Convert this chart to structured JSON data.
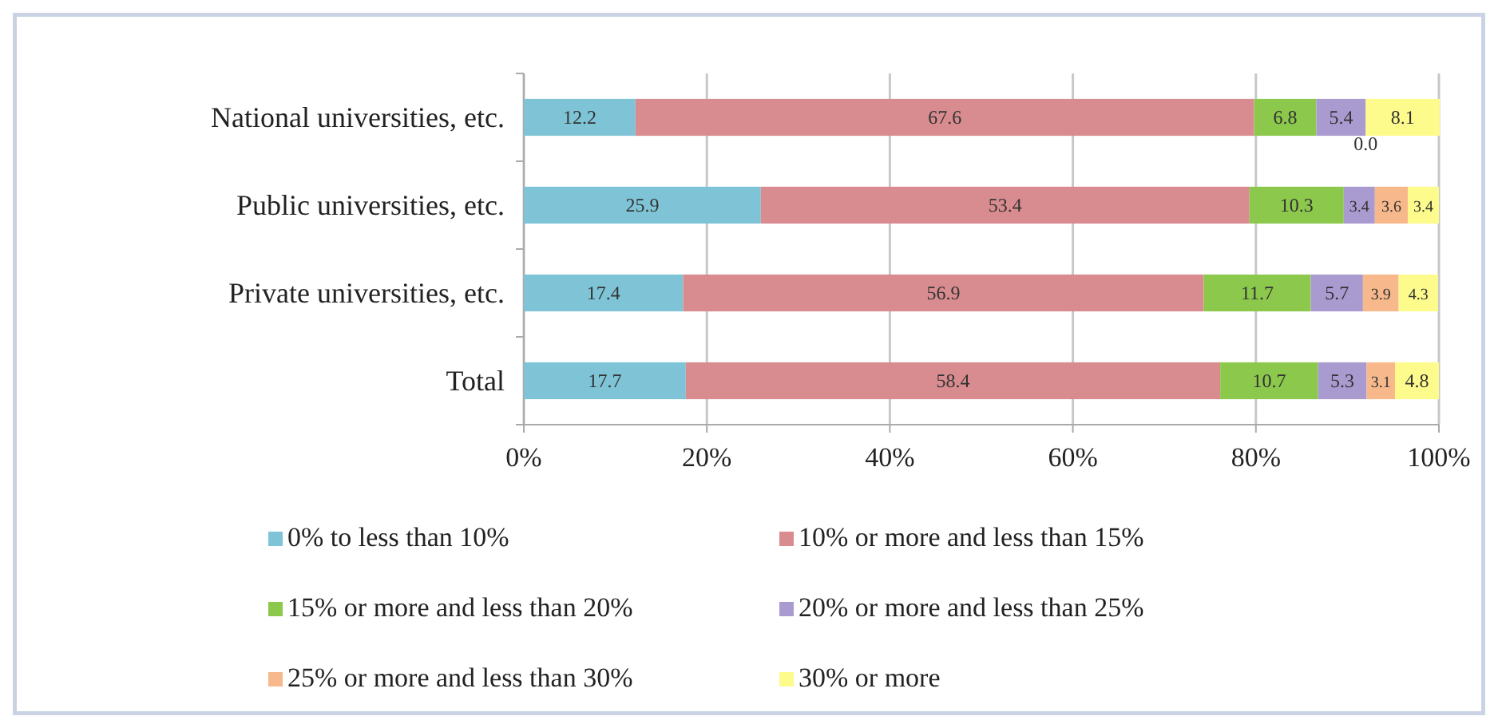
{
  "chart_data": {
    "type": "bar",
    "orientation": "horizontal",
    "stacked": true,
    "grid": "x",
    "legend": "bottom",
    "categories": [
      "National universities, etc.",
      "Public universities, etc.",
      "Private universities, etc.",
      "Total"
    ],
    "xlim": [
      0,
      100
    ],
    "xticks": [
      {
        "value": 0,
        "label": "0%"
      },
      {
        "value": 20,
        "label": "20%"
      },
      {
        "value": 40,
        "label": "40%"
      },
      {
        "value": 60,
        "label": "60%"
      },
      {
        "value": 80,
        "label": "80%"
      },
      {
        "value": 100,
        "label": "100%"
      }
    ],
    "series": [
      {
        "name": "0% to less than 10%",
        "color": "#7ec4d6",
        "values": [
          12.2,
          25.9,
          17.4,
          17.7
        ],
        "value_labels": [
          "12.2",
          "25.9",
          "17.4",
          "17.7"
        ]
      },
      {
        "name": "10% or more and less than 15%",
        "color": "#d98c8f",
        "values": [
          67.6,
          53.4,
          56.9,
          58.4
        ],
        "value_labels": [
          "67.6",
          "53.4",
          "56.9",
          "58.4"
        ]
      },
      {
        "name": "15% or more and less than 20%",
        "color": "#8cc84b",
        "values": [
          6.8,
          10.3,
          11.7,
          10.7
        ],
        "value_labels": [
          "6.8",
          "10.3",
          "11.7",
          "10.7"
        ]
      },
      {
        "name": "20% or more and less than 25%",
        "color": "#a99bd0",
        "values": [
          5.4,
          3.4,
          5.7,
          5.3
        ],
        "value_labels": [
          "5.4",
          "3.4",
          "5.7",
          "5.3"
        ]
      },
      {
        "name": "25% or more and less than 30%",
        "color": "#f7b98b",
        "values": [
          0.0,
          3.6,
          3.9,
          3.1
        ],
        "value_labels": [
          "0.0",
          "3.6",
          "3.9",
          "3.1"
        ]
      },
      {
        "name": "30% or more",
        "color": "#fdfb8c",
        "values": [
          8.1,
          3.4,
          4.3,
          4.8
        ],
        "value_labels": [
          "8.1",
          "3.4",
          "4.3",
          "4.8"
        ]
      }
    ]
  }
}
